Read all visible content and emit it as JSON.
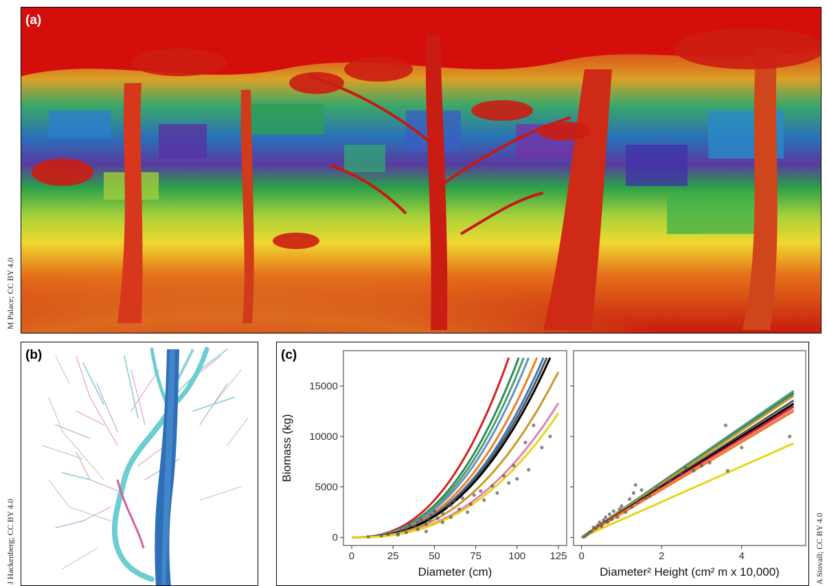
{
  "panels": {
    "a": {
      "label": "(a)",
      "credit": "M Palace; CC BY 4.0"
    },
    "b": {
      "label": "(b)",
      "credit": "J Hackenberg; CC BY 4.0"
    },
    "c": {
      "label": "(c)",
      "credit": "A Stovall; CC BY 4.0"
    }
  },
  "chart_data": [
    {
      "type": "line",
      "xlabel": "Diameter (cm)",
      "ylabel": "Biomass (kg)",
      "xlim": [
        -5,
        130
      ],
      "ylim": [
        -800,
        18500
      ],
      "xticks": [
        0,
        25,
        50,
        75,
        100,
        125
      ],
      "yticks": [
        0,
        5000,
        10000,
        15000
      ],
      "series": [
        {
          "color": "#d71f1f",
          "x_end": 95
        },
        {
          "color": "#2e8b57",
          "x_end": 101
        },
        {
          "color": "#4aa36b",
          "x_end": 104
        },
        {
          "color": "#6a8fc4",
          "x_end": 107
        },
        {
          "color": "#f07f1c",
          "x_end": 112
        },
        {
          "color": "#3a78c0",
          "x_end": 116
        },
        {
          "color": "#555555",
          "x_end": 118
        },
        {
          "color": "#000000",
          "x_end": 120
        },
        {
          "color": "#c89a2a",
          "x_end": 125
        },
        {
          "color": "#e57fb3",
          "x_end": 125
        },
        {
          "color": "#e6d619",
          "x_end": 125
        }
      ],
      "points": [
        [
          10,
          60
        ],
        [
          18,
          150
        ],
        [
          22,
          300
        ],
        [
          28,
          400
        ],
        [
          30,
          700
        ],
        [
          33,
          900
        ],
        [
          35,
          1200
        ],
        [
          38,
          1100
        ],
        [
          40,
          1500
        ],
        [
          42,
          1800
        ],
        [
          45,
          1300
        ],
        [
          48,
          2200
        ],
        [
          50,
          2600
        ],
        [
          52,
          1900
        ],
        [
          55,
          2400
        ],
        [
          58,
          3100
        ],
        [
          60,
          2000
        ],
        [
          62,
          3600
        ],
        [
          65,
          2800
        ],
        [
          67,
          3900
        ],
        [
          70,
          2500
        ],
        [
          72,
          3300
        ],
        [
          74,
          4200
        ],
        [
          78,
          4600
        ],
        [
          80,
          3700
        ],
        [
          85,
          5100
        ],
        [
          88,
          4400
        ],
        [
          92,
          6100
        ],
        [
          95,
          5400
        ],
        [
          98,
          7100
        ],
        [
          100,
          5800
        ],
        [
          105,
          9400
        ],
        [
          107,
          6700
        ],
        [
          110,
          11100
        ],
        [
          115,
          8900
        ],
        [
          120,
          10000
        ],
        [
          40,
          800
        ],
        [
          45,
          600
        ],
        [
          55,
          1500
        ],
        [
          60,
          3200
        ],
        [
          28,
          250
        ],
        [
          33,
          500
        ],
        [
          47,
          1700
        ]
      ]
    },
    {
      "type": "line",
      "xlabel": "Diameter² Height (cm² m x 10,000)",
      "ylabel": "",
      "xlim": [
        -0.2,
        5.6
      ],
      "ylim": [
        -800,
        18500
      ],
      "xticks": [
        0,
        2,
        4
      ],
      "yticks": [
        0,
        5000,
        10000,
        15000
      ],
      "series": [
        {
          "color": "#6a8fc4",
          "slope": 2740
        },
        {
          "color": "#4aa36b",
          "slope": 2720
        },
        {
          "color": "#2e8b57",
          "slope": 2690
        },
        {
          "color": "#c89a2a",
          "slope": 2650
        },
        {
          "color": "#555555",
          "slope": 2560
        },
        {
          "color": "#000000",
          "slope": 2500
        },
        {
          "color": "#d71f1f",
          "slope": 2450
        },
        {
          "color": "#e57fb3",
          "slope": 2400
        },
        {
          "color": "#f07f1c",
          "slope": 2360
        },
        {
          "color": "#e6d619",
          "slope": 1760
        }
      ],
      "x_end": 5.3,
      "points": [
        [
          0.05,
          50
        ],
        [
          0.1,
          150
        ],
        [
          0.15,
          300
        ],
        [
          0.2,
          500
        ],
        [
          0.25,
          600
        ],
        [
          0.3,
          1000
        ],
        [
          0.35,
          900
        ],
        [
          0.4,
          1200
        ],
        [
          0.45,
          1500
        ],
        [
          0.5,
          1100
        ],
        [
          0.55,
          1700
        ],
        [
          0.6,
          2000
        ],
        [
          0.65,
          1500
        ],
        [
          0.7,
          2300
        ],
        [
          0.8,
          2600
        ],
        [
          0.9,
          2000
        ],
        [
          1.0,
          3100
        ],
        [
          1.1,
          2500
        ],
        [
          1.2,
          3800
        ],
        [
          1.3,
          4400
        ],
        [
          1.35,
          5200
        ],
        [
          1.4,
          3500
        ],
        [
          1.5,
          4700
        ],
        [
          1.6,
          3900
        ],
        [
          1.7,
          4100
        ],
        [
          1.9,
          4900
        ],
        [
          2.2,
          5600
        ],
        [
          2.5,
          6300
        ],
        [
          2.6,
          6900
        ],
        [
          2.8,
          6600
        ],
        [
          3.0,
          7100
        ],
        [
          3.2,
          7400
        ],
        [
          3.6,
          11100
        ],
        [
          3.65,
          6600
        ],
        [
          4.0,
          8900
        ],
        [
          5.2,
          10000
        ],
        [
          0.75,
          1800
        ],
        [
          0.95,
          2800
        ],
        [
          1.25,
          3000
        ]
      ]
    }
  ]
}
